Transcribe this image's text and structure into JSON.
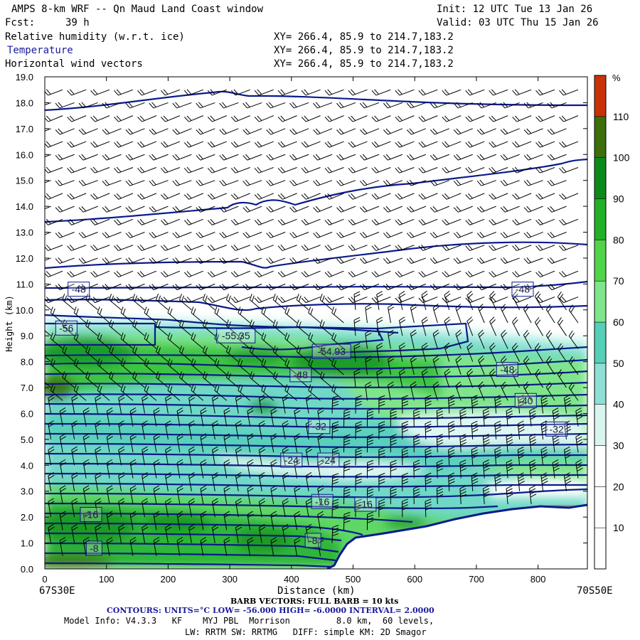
{
  "header": {
    "title": "AMPS 8-km WRF -- Qn Maud Land Coast window",
    "init": "Init: 12 UTC Tue 13 Jan 26",
    "fcst_label": "Fcst:",
    "fcst_value": "39 h",
    "valid": "Valid: 03 UTC Thu 15 Jan 26",
    "fields": [
      {
        "name": "Relative humidity (w.r.t. ice)",
        "xy": "XY= 266.4, 85.9 to 214.7,183.2"
      },
      {
        "name": "Temperature",
        "xy": "XY= 266.4, 85.9 to 214.7,183.2"
      },
      {
        "name": "Horizontal wind vectors",
        "xy": "XY= 266.4, 85.9 to 214.7,183.2"
      }
    ]
  },
  "footer": {
    "left_end": "67S30E",
    "right_end": "70S50E",
    "barb_note": "BARB VECTORS: FULL BARB = 10 kts",
    "contours": "CONTOURS: UNITS=°C LOW= -56.000 HIGH= -6.0000 INTERVAL= 2.0000",
    "model_info_1": "Model Info: V4.3.3   KF    MYJ PBL  Morrison         8.0 km,  60 levels,",
    "model_info_2": "LW: RRTM SW: RRTMG   DIFF: simple KM: 2D Smagor"
  },
  "colorbar": {
    "unit": "%",
    "levels": [
      10,
      20,
      30,
      40,
      50,
      60,
      70,
      80,
      90,
      100,
      110
    ],
    "colors": [
      "#ffffff",
      "#ffffff",
      "#ffffff",
      "#d8f5f0",
      "#8fe0d4",
      "#55cfb8",
      "#7ee68a",
      "#4fd44a",
      "#22b026",
      "#0b8a1c",
      "#3c6e0a",
      "#c83208"
    ]
  },
  "colors": {
    "contour": "#0a1a8c",
    "terrain": "#ffffff",
    "label_box": "#0a1a8c"
  },
  "chart_data": {
    "type": "heatmap",
    "title": "Relative humidity (w.r.t. ice), Temperature, Horizontal wind vectors",
    "xlabel": "Distance (km)",
    "ylabel": "Height (km)",
    "xlim": [
      0,
      880
    ],
    "ylim": [
      0,
      19
    ],
    "x_ticks": [
      0,
      100,
      200,
      300,
      400,
      500,
      600,
      700,
      800
    ],
    "y_ticks": [
      "0.0",
      "1.0",
      "2.0",
      "3.0",
      "4.0",
      "5.0",
      "6.0",
      "7.0",
      "8.0",
      "9.0",
      "10.0",
      "11.0",
      "12.0",
      "13.0",
      "14.0",
      "15.0",
      "16.0",
      "17.0",
      "18.0",
      "19.0"
    ],
    "contour_labels": [
      {
        "text": "-48",
        "x": 55,
        "y": 10.8
      },
      {
        "text": "-48",
        "x": 775,
        "y": 10.8
      },
      {
        "text": "-56",
        "x": 35,
        "y": 9.3
      },
      {
        "text": "-55.35",
        "x": 310,
        "y": 9.0
      },
      {
        "text": "-54.93",
        "x": 465,
        "y": 8.4
      },
      {
        "text": "-48",
        "x": 415,
        "y": 7.5
      },
      {
        "text": "-48",
        "x": 750,
        "y": 7.7
      },
      {
        "text": "-40",
        "x": 780,
        "y": 6.5
      },
      {
        "text": "-32",
        "x": 445,
        "y": 5.5
      },
      {
        "text": "-32",
        "x": 830,
        "y": 5.4
      },
      {
        "text": "-24",
        "x": 400,
        "y": 4.2
      },
      {
        "text": "-24",
        "x": 460,
        "y": 4.2
      },
      {
        "text": "-16",
        "x": 450,
        "y": 2.6
      },
      {
        "text": "-16",
        "x": 520,
        "y": 2.5
      },
      {
        "text": "-16",
        "x": 75,
        "y": 2.1
      },
      {
        "text": "-8",
        "x": 80,
        "y": 0.8
      },
      {
        "text": "-8",
        "x": 435,
        "y": 1.1
      }
    ],
    "terrain_profile": {
      "x": [
        0,
        440,
        460,
        470,
        480,
        500,
        560,
        620,
        680,
        740,
        800,
        880
      ],
      "height": [
        0.05,
        0.05,
        0.1,
        0.4,
        0.9,
        1.2,
        1.5,
        1.8,
        2.1,
        2.3,
        2.35,
        2.5
      ]
    },
    "rh_layers_note": "Moist layer (RH 60-100%) from surface to ~9.5 km west of 500 km; drier (RH 30-50%) band near 3-6 km east of 550 km"
  }
}
